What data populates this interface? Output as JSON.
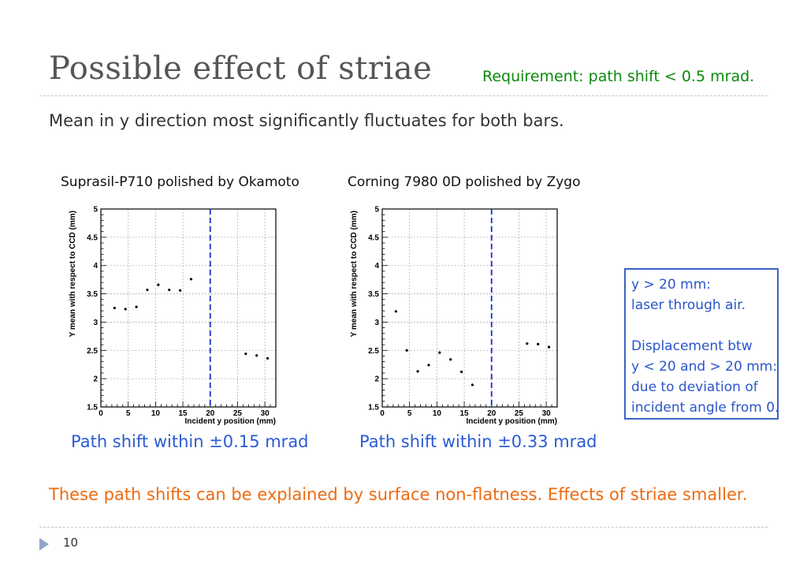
{
  "slide": {
    "title": "Possible effect of striae",
    "requirement": "Requirement: path shift < 0.5 mrad.",
    "subtitle": "Mean in y direction most significantly fluctuates for both bars.",
    "conclusion": "These path shifts can be explained by surface non-flatness. Effects of striae smaller.",
    "page_number": "10",
    "note_lines": [
      "y > 20 mm:",
      "laser through air.",
      "",
      "Displacement btw",
      "y < 20 and > 20 mm:",
      "due to deviation of",
      "incident angle from 0."
    ]
  },
  "colors": {
    "title": "#555555",
    "requirement": "#0a8a0a",
    "shift_text": "#2a5bd4",
    "conclusion": "#ee6a10",
    "note_border": "#3a63c4",
    "divider": "#1a2ecc"
  },
  "chart_data": [
    {
      "type": "scatter",
      "caption": "Suprasil-P710 polished by Okamoto",
      "path_shift": "Path shift within ±0.15 mrad",
      "xlabel": "Incident y position (mm)",
      "ylabel": "Y mean with respect to CCD (mm)",
      "xlim": [
        0,
        32
      ],
      "ylim": [
        1.5,
        5
      ],
      "xticks": [
        "0",
        "5",
        "10",
        "15",
        "20",
        "25",
        "30"
      ],
      "yticks": [
        "1.5",
        "2",
        "2.5",
        "3",
        "3.5",
        "4",
        "4.5",
        "5"
      ],
      "grid": true,
      "divider_x": 20,
      "x": [
        2.5,
        4.5,
        6.5,
        8.5,
        10.5,
        12.5,
        14.5,
        16.5,
        26.5,
        28.5,
        30.5
      ],
      "y": [
        3.25,
        3.23,
        3.27,
        3.57,
        3.66,
        3.57,
        3.56,
        3.76,
        2.44,
        2.41,
        2.36
      ]
    },
    {
      "type": "scatter",
      "caption": "Corning 7980 0D polished by Zygo",
      "path_shift": "Path shift within ±0.33 mrad",
      "xlabel": "Incident y position (mm)",
      "ylabel": "Y mean with respect to CCD (mm)",
      "xlim": [
        0,
        32
      ],
      "ylim": [
        1.5,
        5
      ],
      "xticks": [
        "0",
        "5",
        "10",
        "15",
        "20",
        "25",
        "30"
      ],
      "yticks": [
        "1.5",
        "2",
        "2.5",
        "3",
        "3.5",
        "4",
        "4.5",
        "5"
      ],
      "grid": true,
      "divider_x": 20,
      "x": [
        2.5,
        4.5,
        6.5,
        8.5,
        10.5,
        12.5,
        14.5,
        16.5,
        26.5,
        28.5,
        30.5
      ],
      "y": [
        3.19,
        2.5,
        2.13,
        2.24,
        2.46,
        2.34,
        2.12,
        1.89,
        2.62,
        2.61,
        2.56
      ]
    }
  ]
}
